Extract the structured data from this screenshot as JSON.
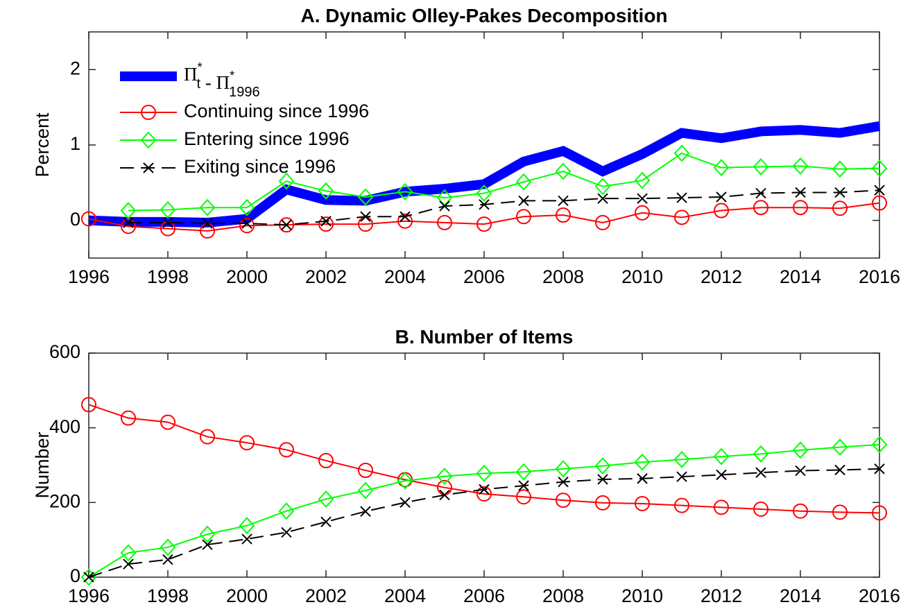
{
  "chart_data": [
    {
      "type": "line",
      "title": "A. Dynamic Olley-Pakes Decomposition",
      "ylabel": "Percent",
      "x": [
        1996,
        1997,
        1998,
        1999,
        2000,
        2001,
        2002,
        2003,
        2004,
        2005,
        2006,
        2007,
        2008,
        2009,
        2010,
        2011,
        2012,
        2013,
        2014,
        2015,
        2016
      ],
      "xlim": [
        1996,
        2016
      ],
      "xticks": [
        1996,
        1998,
        2000,
        2002,
        2004,
        2006,
        2008,
        2010,
        2012,
        2014,
        2016
      ],
      "ylim": [
        -0.5,
        2.5
      ],
      "yticks": [
        0,
        1,
        2
      ],
      "legend": "northwest",
      "series": [
        {
          "name": "Π*t - Π*1996",
          "color": "#0000ff",
          "linewidth": 14,
          "marker": "none",
          "dash": "solid",
          "values": [
            0.0,
            -0.02,
            -0.02,
            -0.03,
            0.02,
            0.41,
            0.27,
            0.26,
            0.38,
            0.42,
            0.48,
            0.78,
            0.92,
            0.65,
            0.88,
            1.16,
            1.09,
            1.18,
            1.2,
            1.16,
            1.25
          ]
        },
        {
          "name": "Continuing since 1996",
          "color": "#ff0000",
          "linewidth": 2,
          "marker": "circle",
          "dash": "solid",
          "values": [
            0.02,
            -0.08,
            -0.11,
            -0.14,
            -0.07,
            -0.06,
            -0.05,
            -0.05,
            -0.01,
            -0.03,
            -0.05,
            0.05,
            0.07,
            -0.03,
            0.1,
            0.04,
            0.13,
            0.17,
            0.17,
            0.16,
            0.23
          ]
        },
        {
          "name": "Entering since 1996",
          "color": "#00ff00",
          "linewidth": 2,
          "marker": "diamond",
          "dash": "solid",
          "values": [
            null,
            0.13,
            0.14,
            0.17,
            0.17,
            0.52,
            0.39,
            0.31,
            0.38,
            0.3,
            0.36,
            0.51,
            0.65,
            0.45,
            0.53,
            0.89,
            0.7,
            0.71,
            0.72,
            0.68,
            0.69
          ]
        },
        {
          "name": "Exiting since 1996",
          "color": "#000000",
          "linewidth": 2,
          "marker": "x",
          "dash": "dashed",
          "values": [
            null,
            -0.03,
            -0.03,
            -0.04,
            -0.04,
            -0.06,
            -0.01,
            0.05,
            0.05,
            0.19,
            0.21,
            0.26,
            0.26,
            0.29,
            0.29,
            0.3,
            0.31,
            0.36,
            0.37,
            0.37,
            0.4
          ]
        }
      ]
    },
    {
      "type": "line",
      "title": "B. Number of Items",
      "ylabel": "Number",
      "x": [
        1996,
        1997,
        1998,
        1999,
        2000,
        2001,
        2002,
        2003,
        2004,
        2005,
        2006,
        2007,
        2008,
        2009,
        2010,
        2011,
        2012,
        2013,
        2014,
        2015,
        2016
      ],
      "xlim": [
        1996,
        2016
      ],
      "xticks": [
        1996,
        1998,
        2000,
        2002,
        2004,
        2006,
        2008,
        2010,
        2012,
        2014,
        2016
      ],
      "ylim": [
        0,
        600
      ],
      "yticks": [
        0,
        200,
        400,
        600
      ],
      "series": [
        {
          "color": "#ff0000",
          "linewidth": 2,
          "marker": "circle",
          "dash": "solid",
          "values": [
            462,
            426,
            415,
            376,
            360,
            341,
            312,
            286,
            261,
            240,
            223,
            215,
            206,
            199,
            197,
            192,
            187,
            182,
            177,
            174,
            172
          ]
        },
        {
          "color": "#00ff00",
          "linewidth": 2,
          "marker": "diamond",
          "dash": "solid",
          "values": [
            0,
            65,
            80,
            115,
            138,
            177,
            209,
            232,
            258,
            270,
            278,
            282,
            290,
            298,
            308,
            315,
            323,
            330,
            340,
            348,
            355
          ]
        },
        {
          "color": "#000000",
          "linewidth": 2,
          "marker": "x",
          "dash": "dashed",
          "values": [
            0,
            35,
            47,
            87,
            102,
            120,
            148,
            176,
            200,
            220,
            235,
            245,
            255,
            262,
            264,
            269,
            274,
            280,
            285,
            287,
            290
          ]
        }
      ]
    }
  ]
}
